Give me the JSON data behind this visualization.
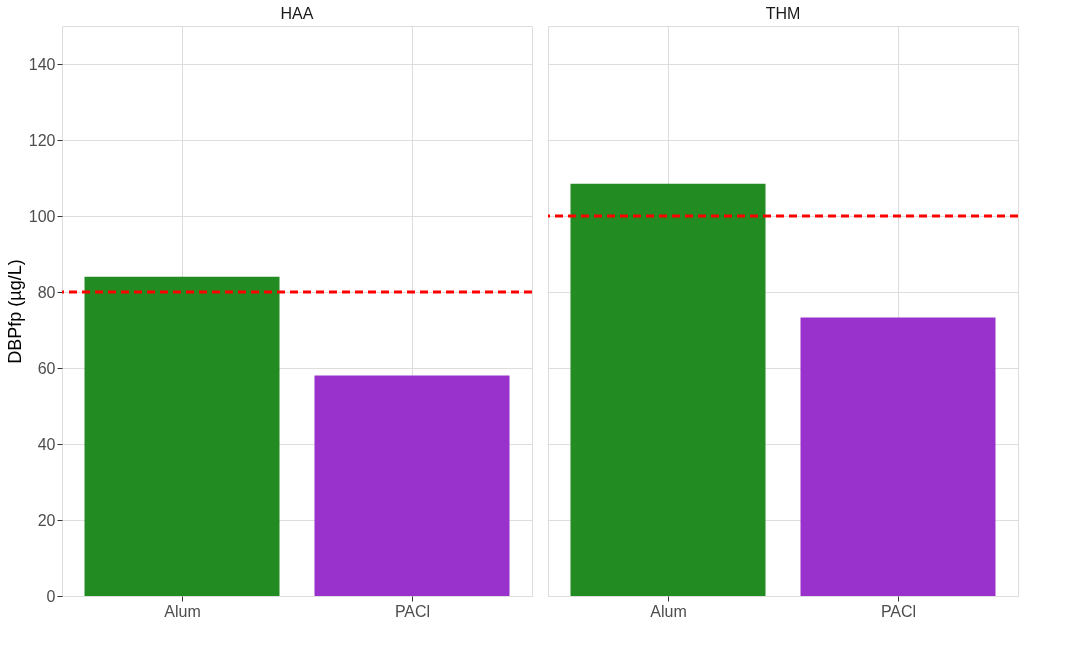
{
  "chart_data": [
    {
      "type": "bar",
      "title": "HAA",
      "ylabel": "DBPfp (µg/L)",
      "categories": [
        "Alum",
        "PACl"
      ],
      "values": [
        84,
        58
      ],
      "colors": [
        "#228b22",
        "#9932cc"
      ],
      "ylim": [
        0,
        150
      ],
      "yticks": [
        0,
        20,
        40,
        60,
        80,
        100,
        120,
        140
      ],
      "grid": true,
      "ref_lines": [
        {
          "axis": "y",
          "value": 80,
          "color": "#ff0000",
          "line_style": "dashed"
        }
      ]
    },
    {
      "type": "bar",
      "title": "THM",
      "categories": [
        "Alum",
        "PACl"
      ],
      "values": [
        108.5,
        73.3
      ],
      "colors": [
        "#228b22",
        "#9932cc"
      ],
      "ylim": [
        0,
        150
      ],
      "yticks": [
        0,
        20,
        40,
        60,
        80,
        100,
        120,
        140
      ],
      "grid": true,
      "tick_labels": "x",
      "ref_lines": [
        {
          "axis": "y",
          "value": 100,
          "color": "#ff0000",
          "line_style": "dashed"
        }
      ]
    }
  ]
}
